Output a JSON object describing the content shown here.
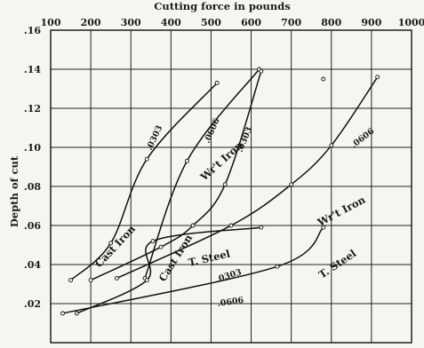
{
  "chart_data": {
    "type": "line",
    "title": "Cutting force in pounds",
    "xlabel": "",
    "ylabel": "Depth of cut",
    "xlim": [
      100,
      1000
    ],
    "ylim": [
      0,
      0.16
    ],
    "x_ticks": [
      "100",
      "200",
      "300",
      "400",
      "500",
      "600",
      "700",
      "800",
      "900",
      "1000"
    ],
    "y_ticks": [
      ".02",
      ".04",
      ".06",
      ".08",
      ".10",
      ".12",
      ".14",
      ".16"
    ],
    "grid": true,
    "series": [
      {
        "name": "Cast Iron",
        "feed": ".0303",
        "values": [
          [
            150,
            0.032
          ],
          [
            250,
            0.051
          ],
          [
            340,
            0.094
          ],
          [
            515,
            0.133
          ]
        ]
      },
      {
        "name": "Cast Iron",
        "feed": ".0606",
        "values": [
          [
            335,
            0.033
          ],
          [
            440,
            0.093
          ],
          [
            620,
            0.14
          ]
        ]
      },
      {
        "name": "Wr't Iron",
        "feed": ".0303",
        "values": [
          [
            200,
            0.032
          ],
          [
            375,
            0.049
          ],
          [
            455,
            0.06
          ],
          [
            535,
            0.081
          ],
          [
            625,
            0.139
          ]
        ]
      },
      {
        "name": "Wr't Iron",
        "feed": ".0606",
        "values": [
          [
            265,
            0.033
          ],
          [
            550,
            0.06
          ],
          [
            700,
            0.081
          ],
          [
            800,
            0.101
          ],
          [
            915,
            0.136
          ]
        ]
      },
      {
        "name": "T. Steel",
        "feed": ".0303",
        "values": [
          [
            165,
            0.015
          ],
          [
            340,
            0.032
          ],
          [
            355,
            0.052
          ],
          [
            625,
            0.059
          ]
        ]
      },
      {
        "name": "T. Steel",
        "feed": ".0606",
        "values": [
          [
            130,
            0.015
          ],
          [
            665,
            0.039
          ],
          [
            780,
            0.059
          ]
        ]
      }
    ],
    "extra_points": [
      [
        780,
        0.135
      ]
    ],
    "curve_labels": [
      {
        "text": "Cast Iron"
      },
      {
        "text": "Cast Iron"
      },
      {
        "text": "Wr't Iron"
      },
      {
        "text": "Wr't Iron"
      },
      {
        "text": "T. Steel"
      },
      {
        "text": "T. Steel"
      },
      {
        "text": ".0303"
      },
      {
        "text": ".0606"
      },
      {
        "text": ".0303"
      },
      {
        "text": ".0606"
      },
      {
        "text": ".0303"
      },
      {
        "text": ".0606"
      }
    ]
  }
}
